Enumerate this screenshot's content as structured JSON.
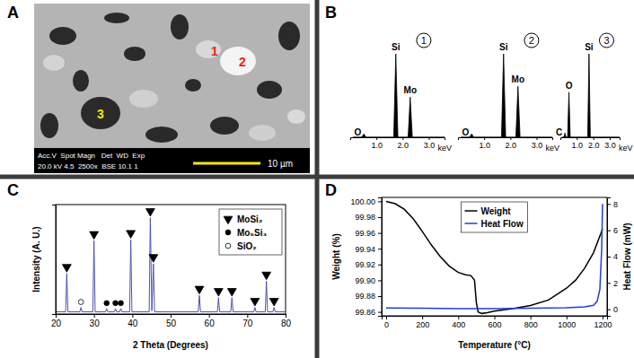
{
  "chart_data": [
    {
      "type": "image",
      "title": "A",
      "annotations": [
        {
          "text": "1",
          "color": "#e8261f"
        },
        {
          "text": "2",
          "color": "#e8261f"
        },
        {
          "text": "3",
          "color": "#f5e614"
        },
        {
          "text": "Acc.V  Spot Magn   Det  WD  Exp",
          "color": "#ffffff"
        },
        {
          "text": "20.0 kV 4.5  2500x  BSE 10.1 1",
          "color": "#ffffff"
        },
        {
          "text": "10 µm",
          "color": "#ffffff"
        }
      ]
    },
    {
      "type": "area",
      "title": "B",
      "xlabel": "keV",
      "tick_labels": "x",
      "xlim": [
        0,
        3.6
      ],
      "xticks": [
        {
          "value": 1,
          "label": "1.0"
        },
        {
          "value": 2,
          "label": "2.0"
        },
        {
          "value": 3,
          "label": "3.0"
        }
      ],
      "ylim": [
        0,
        100
      ],
      "series": [
        {
          "name": "1",
          "color": "#000000",
          "x": [
            0.1,
            0.44,
            0.52,
            0.6,
            1.66,
            1.74,
            1.82,
            2.21,
            2.29,
            2.37,
            3.6
          ],
          "values": [
            0,
            0,
            4,
            0,
            0,
            100,
            0,
            0,
            48,
            0,
            0
          ],
          "annotations": [
            {
              "text": "O",
              "x": 0.52,
              "y": 4
            },
            {
              "text": "Si",
              "x": 1.74,
              "y": 100
            },
            {
              "text": "Mo",
              "x": 2.29,
              "y": 48
            }
          ]
        },
        {
          "name": "2",
          "color": "#000000",
          "x": [
            0.1,
            0.44,
            0.52,
            0.6,
            1.66,
            1.74,
            1.82,
            2.21,
            2.29,
            2.37,
            3.6
          ],
          "values": [
            0,
            0,
            4,
            0,
            0,
            100,
            0,
            0,
            61,
            0,
            0
          ],
          "annotations": [
            {
              "text": "O",
              "x": 0.52,
              "y": 4
            },
            {
              "text": "Si",
              "x": 1.74,
              "y": 100
            },
            {
              "text": "Mo",
              "x": 2.29,
              "y": 61
            }
          ]
        },
        {
          "name": "3",
          "color": "#000000",
          "x": [
            0.1,
            0.22,
            0.28,
            0.34,
            0.44,
            0.52,
            0.6,
            1.66,
            1.74,
            1.82,
            3.6
          ],
          "values": [
            0,
            0,
            5,
            0,
            0,
            54,
            0,
            0,
            100,
            0,
            0
          ],
          "annotations": [
            {
              "text": "C",
              "x": 0.28,
              "y": 5
            },
            {
              "text": "O",
              "x": 0.52,
              "y": 54
            },
            {
              "text": "Si",
              "x": 1.74,
              "y": 100
            }
          ]
        }
      ]
    },
    {
      "type": "line",
      "title": "C",
      "xlabel": "2 Theta (Degrees)",
      "ylabel": "Intensity (A. U.)",
      "tick_labels": "x",
      "legend": "upper right",
      "xlim": [
        20,
        80
      ],
      "xticks": [
        20,
        30,
        40,
        50,
        60,
        70,
        80
      ],
      "ylim": [
        0,
        100
      ],
      "series": [
        {
          "type": "line",
          "color": "#4b50b0",
          "x": [
            20,
            22.6,
            22.9,
            23.2,
            26.3,
            26.6,
            26.9,
            29.7,
            30.0,
            30.3,
            33.0,
            33.3,
            33.6,
            35.3,
            35.6,
            35.9,
            36.7,
            37.0,
            37.3,
            39.3,
            39.6,
            39.9,
            44.4,
            44.7,
            45.1,
            45.5,
            45.8,
            57.2,
            57.5,
            57.8,
            62.2,
            62.5,
            62.8,
            65.7,
            66.0,
            66.3,
            71.7,
            72.0,
            72.3,
            74.7,
            75.0,
            75.3,
            76.7,
            77.0,
            77.3,
            80
          ],
          "values": [
            2,
            2,
            37,
            2,
            2,
            6,
            2,
            2,
            67,
            2,
            2,
            5,
            2,
            2,
            5,
            2,
            2,
            5,
            2,
            2,
            68,
            2,
            2,
            88,
            3,
            46,
            2,
            2,
            17,
            2,
            2,
            15,
            2,
            2,
            15,
            2,
            2,
            6,
            2,
            2,
            30,
            2,
            2,
            6,
            2,
            2
          ]
        },
        {
          "name": "MoSi₂",
          "type": "scatter",
          "marker": "triangle-down",
          "color": "#000000",
          "x": [
            22.9,
            30.0,
            39.6,
            44.7,
            45.5,
            57.5,
            62.5,
            66.0,
            72.0,
            75.0,
            77.0
          ],
          "values": [
            43,
            73,
            74,
            94,
            52,
            23,
            21,
            21,
            12,
            36,
            12
          ]
        },
        {
          "name": "Mo₅Si₃",
          "type": "scatter",
          "marker": "circle",
          "color": "#000000",
          "x": [
            33.3,
            35.6,
            37.0
          ],
          "values": [
            10,
            10,
            10
          ]
        },
        {
          "name": "SiO₂",
          "type": "scatter",
          "marker": "circle-open",
          "color": "#000000",
          "x": [
            26.6
          ],
          "values": [
            11
          ]
        }
      ]
    },
    {
      "type": "line",
      "title": "D",
      "xlabel": "Temperature (°C)",
      "ylabel": "Weight (%)",
      "y2label": "Heat Flow (mW)",
      "legend": "upper center",
      "xlim": [
        -25,
        1225
      ],
      "xticks": [
        0,
        200,
        400,
        600,
        800,
        1000,
        1200
      ],
      "ylim": [
        99.855,
        100.005
      ],
      "yticks": [
        99.86,
        99.88,
        {
          "value": 99.9,
          "label": "99.90"
        },
        99.92,
        99.94,
        99.96,
        99.98,
        {
          "value": 100,
          "label": "100.00"
        }
      ],
      "y2lim": [
        -0.5,
        8.5
      ],
      "y2ticks": [
        0,
        2,
        4,
        6,
        8
      ],
      "series": [
        {
          "name": "Weight",
          "color": "#000000",
          "x": [
            0,
            50,
            100,
            150,
            200,
            250,
            300,
            350,
            400,
            440,
            470,
            490,
            500,
            510,
            530,
            560,
            600,
            700,
            800,
            900,
            1000,
            1050,
            1100,
            1150,
            1200
          ],
          "values": [
            100.0,
            99.997,
            99.99,
            99.978,
            99.962,
            99.945,
            99.93,
            99.918,
            99.91,
            99.907,
            99.906,
            99.9,
            99.872,
            99.86,
            99.858,
            99.859,
            99.861,
            99.864,
            99.868,
            99.875,
            99.89,
            99.9,
            99.915,
            99.935,
            99.965
          ]
        },
        {
          "name": "Heat Flow",
          "color": "#1f3fd1",
          "axis": "y2",
          "x": [
            0,
            200,
            400,
            600,
            800,
            1000,
            1100,
            1150,
            1170,
            1185,
            1195,
            1200
          ],
          "values": [
            0.1,
            0.08,
            0.05,
            0.05,
            0.08,
            0.12,
            0.18,
            0.3,
            0.6,
            1.5,
            4.5,
            8.0
          ]
        }
      ]
    }
  ]
}
